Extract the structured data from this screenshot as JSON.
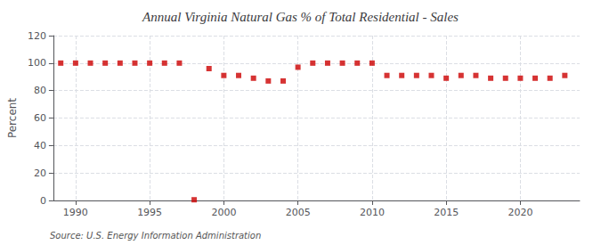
{
  "chart_data": {
    "type": "scatter",
    "title": "Annual Virginia Natural Gas % of Total Residential - Sales",
    "ylabel": "Percent",
    "annotation": "Source: U.S. Energy Information Administration",
    "x": [
      1989,
      1990,
      1991,
      1992,
      1993,
      1994,
      1995,
      1996,
      1997,
      1998,
      1999,
      2000,
      2001,
      2002,
      2003,
      2004,
      2005,
      2006,
      2007,
      2008,
      2009,
      2010,
      2011,
      2012,
      2013,
      2014,
      2015,
      2016,
      2017,
      2018,
      2019,
      2020,
      2021,
      2022,
      2023
    ],
    "values": [
      100,
      100,
      100,
      100,
      100,
      100,
      100,
      100,
      100,
      0.5,
      96,
      91,
      91,
      89,
      87,
      87,
      97,
      100,
      100,
      100,
      100,
      100,
      91,
      91,
      91,
      91,
      89,
      91,
      91,
      89,
      89,
      89,
      89,
      89,
      91
    ],
    "color": "#cc0000",
    "marker": "square",
    "xlim": [
      1988.5,
      2024
    ],
    "xticks": [
      1990,
      1995,
      2000,
      2005,
      2010,
      2015,
      2020
    ],
    "ylim": [
      0,
      120
    ],
    "yticks": [
      0,
      20,
      40,
      60,
      80,
      100,
      120
    ],
    "grid": true
  }
}
